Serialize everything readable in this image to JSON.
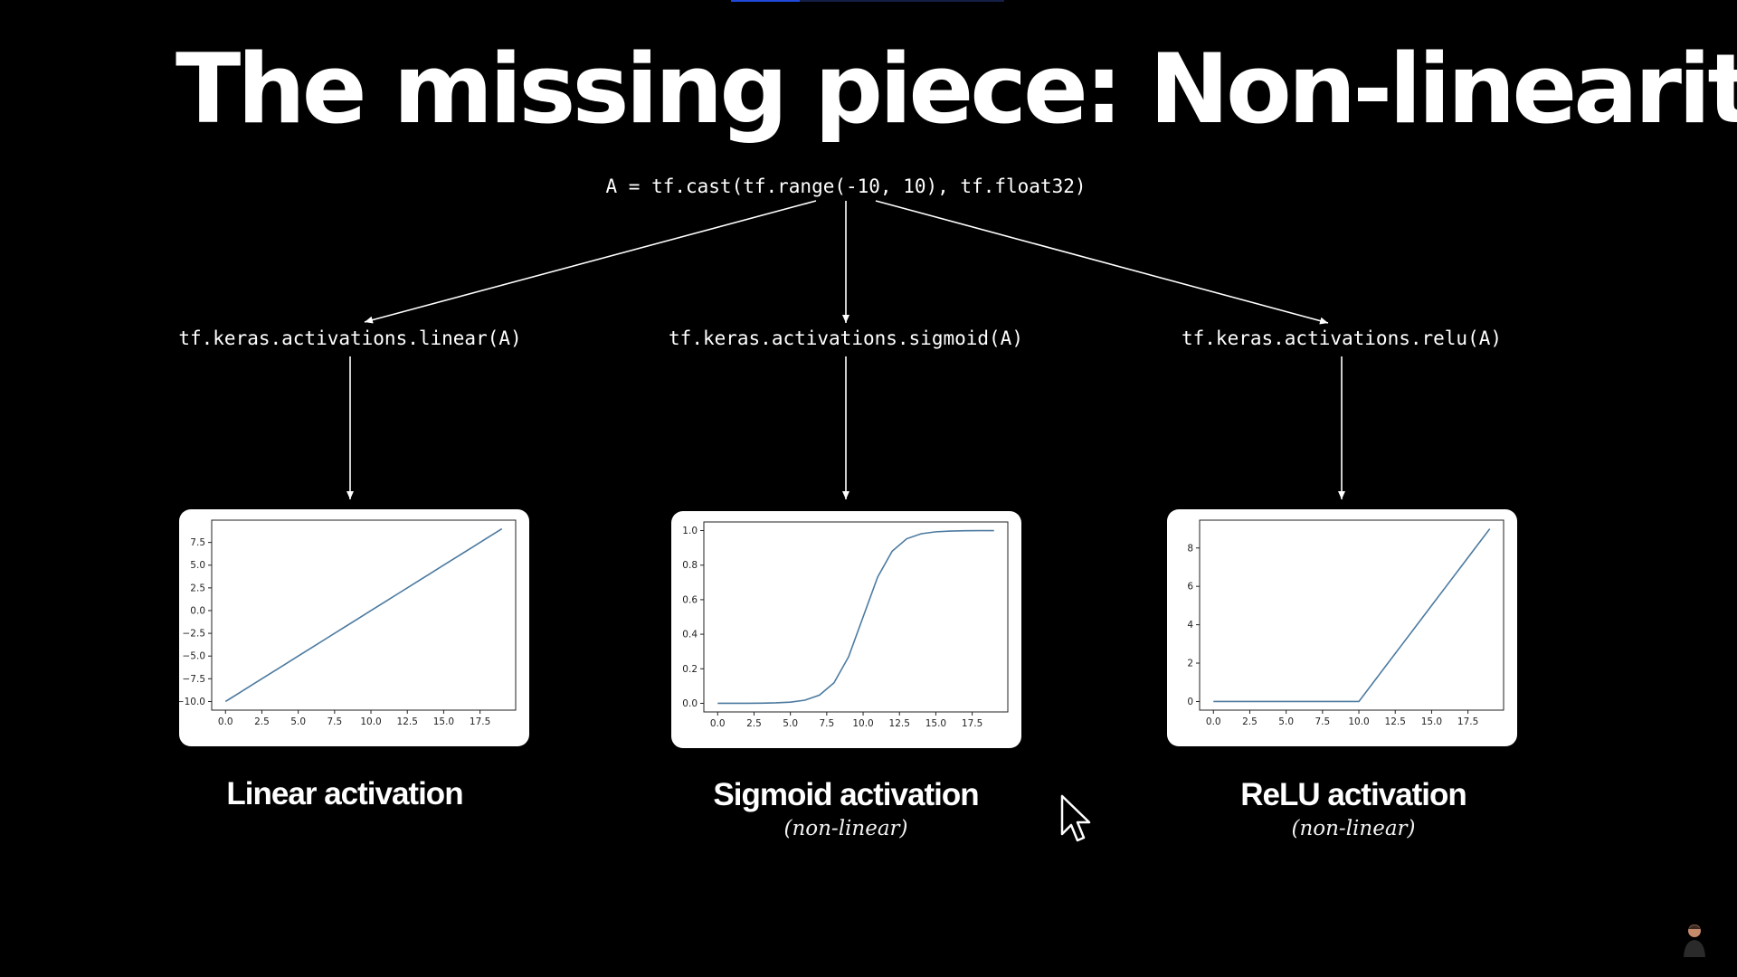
{
  "slide": {
    "title": "The missing piece: Non-linearity",
    "input_code": "A = tf.cast(tf.range(-10, 10), tf.float32)",
    "progress": 0.25
  },
  "branches": [
    {
      "code": "tf.keras.activations.linear(A)",
      "label": "Linear activation",
      "note": ""
    },
    {
      "code": "tf.keras.activations.sigmoid(A)",
      "label": "Sigmoid activation",
      "note": "(non-linear)"
    },
    {
      "code": "tf.keras.activations.relu(A)",
      "label": "ReLU activation",
      "note": "(non-linear)"
    }
  ],
  "chart_data": [
    {
      "type": "line",
      "x": [
        0,
        1,
        2,
        3,
        4,
        5,
        6,
        7,
        8,
        9,
        10,
        11,
        12,
        13,
        14,
        15,
        16,
        17,
        18,
        19
      ],
      "series": [
        {
          "values": [
            -10,
            -9,
            -8,
            -7,
            -6,
            -5,
            -4,
            -3,
            -2,
            -1,
            0,
            1,
            2,
            3,
            4,
            5,
            6,
            7,
            8,
            9
          ]
        }
      ],
      "xticks": [
        "0.0",
        "2.5",
        "5.0",
        "7.5",
        "10.0",
        "12.5",
        "15.0",
        "17.5"
      ],
      "yticks": [
        "7.5",
        "5.0",
        "2.5",
        "0.0",
        "−2.5",
        "−5.0",
        "−7.5",
        "−10.0"
      ],
      "ylim": [
        -10.95,
        9.95
      ],
      "xlim": [
        -0.95,
        19.95
      ],
      "grid": false,
      "title": "",
      "xlabel": "",
      "ylabel": "",
      "line_color": "#4c7aa0"
    },
    {
      "type": "line",
      "x": [
        0,
        1,
        2,
        3,
        4,
        5,
        6,
        7,
        8,
        9,
        10,
        11,
        12,
        13,
        14,
        15,
        16,
        17,
        18,
        19
      ],
      "series": [
        {
          "values": [
            4.54e-05,
            0.000123,
            0.000335,
            0.000911,
            0.00247,
            0.00669,
            0.018,
            0.0474,
            0.119,
            0.269,
            0.5,
            0.731,
            0.881,
            0.953,
            0.982,
            0.993,
            0.9975,
            0.9991,
            0.99966,
            0.99988
          ]
        }
      ],
      "xticks": [
        "0.0",
        "2.5",
        "5.0",
        "7.5",
        "10.0",
        "12.5",
        "15.0",
        "17.5"
      ],
      "yticks": [
        "1.0",
        "0.8",
        "0.6",
        "0.4",
        "0.2",
        "0.0"
      ],
      "ylim": [
        -0.05,
        1.05
      ],
      "xlim": [
        -0.95,
        19.95
      ],
      "grid": false,
      "title": "",
      "xlabel": "",
      "ylabel": "",
      "line_color": "#4c7aa0"
    },
    {
      "type": "line",
      "x": [
        0,
        1,
        2,
        3,
        4,
        5,
        6,
        7,
        8,
        9,
        10,
        11,
        12,
        13,
        14,
        15,
        16,
        17,
        18,
        19
      ],
      "series": [
        {
          "values": [
            0,
            0,
            0,
            0,
            0,
            0,
            0,
            0,
            0,
            0,
            0,
            1,
            2,
            3,
            4,
            5,
            6,
            7,
            8,
            9
          ]
        }
      ],
      "xticks": [
        "0.0",
        "2.5",
        "5.0",
        "7.5",
        "10.0",
        "12.5",
        "15.0",
        "17.5"
      ],
      "yticks": [
        "8",
        "6",
        "4",
        "2",
        "0"
      ],
      "ylim": [
        -0.45,
        9.45
      ],
      "xlim": [
        -0.95,
        19.95
      ],
      "grid": false,
      "title": "",
      "xlabel": "",
      "ylabel": "",
      "line_color": "#4c7aa0"
    }
  ]
}
